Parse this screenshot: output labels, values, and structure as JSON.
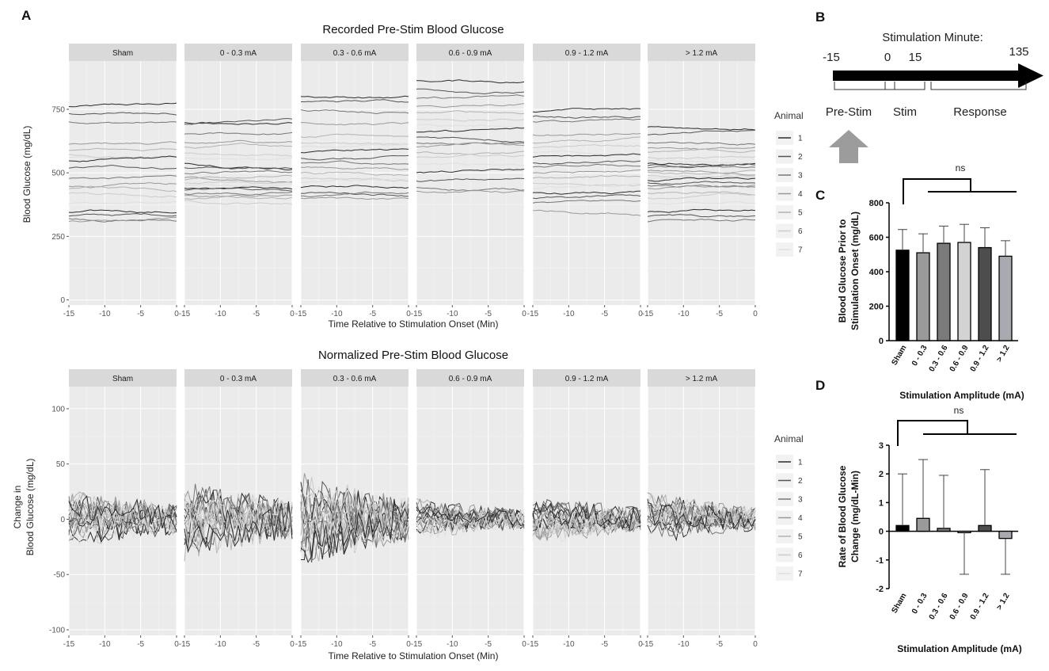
{
  "panel_labels": {
    "a": "A",
    "b": "B",
    "c": "C",
    "d": "D"
  },
  "facets": [
    "Sham",
    "0 - 0.3 mA",
    "0.3 - 0.6 mA",
    "0.6 - 0.9 mA",
    "0.9 - 1.2 mA",
    "> 1.2 mA"
  ],
  "legend": {
    "title": "Animal",
    "items": [
      "1",
      "2",
      "3",
      "4",
      "5",
      "6",
      "7"
    ],
    "colors": [
      "#2b2b2b",
      "#555555",
      "#777777",
      "#999999",
      "#b3b3b3",
      "#cccccc",
      "#e0e0e0"
    ]
  },
  "timeline": {
    "title": "Stimulation Minute:",
    "ticks": [
      "-15",
      "0",
      "15",
      "135"
    ],
    "phases": [
      "Pre-Stim",
      "Stim",
      "Response"
    ]
  },
  "chart_data": [
    {
      "type": "line",
      "title": "Recorded Pre-Stim Blood Glucose",
      "xlabel": "Time Relative to Stimulation Onset (Min)",
      "ylabel": "Blood Glucose (mg/dL)",
      "xlim": [
        -15,
        0
      ],
      "ylim": [
        -20,
        940
      ],
      "xticks": [
        "-15",
        "-10",
        "-5",
        "0"
      ],
      "yticks": [
        "0",
        "250",
        "500",
        "750"
      ],
      "yticks_values": [
        0,
        250,
        500,
        750
      ],
      "facet_baselines": [
        [
          760,
          735,
          700,
          610,
          590,
          570,
          560,
          550,
          520,
          480,
          450,
          440,
          420,
          380,
          345,
          330,
          320,
          310
        ],
        [
          700,
          690,
          650,
          620,
          600,
          580,
          560,
          540,
          520,
          500,
          480,
          470,
          460,
          450,
          440,
          430,
          420,
          410,
          400,
          390
        ],
        [
          800,
          780,
          750,
          700,
          640,
          620,
          600,
          580,
          560,
          540,
          520,
          500,
          480,
          460,
          440,
          420,
          410,
          400
        ],
        [
          860,
          830,
          790,
          760,
          740,
          710,
          690,
          660,
          640,
          620,
          600,
          580,
          560,
          540,
          500,
          470,
          440,
          430
        ],
        [
          740,
          720,
          700,
          650,
          620,
          600,
          580,
          560,
          540,
          520,
          500,
          480,
          460,
          440,
          420,
          400,
          380,
          350
        ],
        [
          680,
          650,
          620,
          600,
          580,
          560,
          550,
          540,
          530,
          520,
          510,
          500,
          490,
          480,
          470,
          460,
          450,
          440,
          420,
          400,
          380,
          350,
          330,
          310
        ]
      ]
    },
    {
      "type": "line",
      "title": "Normalized Pre-Stim Blood Glucose",
      "xlabel": "Time Relative to Stimulation Onset (Min)",
      "ylabel": "Change in Blood Glucose (mg/dL)",
      "ylabel_lines": [
        "Change in",
        "Blood Glucose (mg/dL)"
      ],
      "xlim": [
        -15,
        0
      ],
      "ylim": [
        -105,
        120
      ],
      "xticks": [
        "-15",
        "-10",
        "-5",
        "0"
      ],
      "yticks": [
        "-100",
        "-50",
        "0",
        "50",
        "100"
      ],
      "yticks_values": [
        -100,
        -50,
        0,
        50,
        100
      ],
      "facet_spread": [
        30,
        40,
        45,
        20,
        25,
        25
      ]
    },
    {
      "type": "bar",
      "title": "",
      "ylabel": "Blood Glucose Prior to Stimulation Onset (mg/dL)",
      "ylabel_lines": [
        "Blood Glucose Prior to",
        "Stimulation Onset (mg/dL)"
      ],
      "xlabel": "Stimulation Amplitude (mA)",
      "categories": [
        "Sham",
        "0 - 0.3",
        "0.3 - 0.6",
        "0.6 - 0.9",
        "0.9 - 1.2",
        "> 1.2"
      ],
      "values": [
        525,
        510,
        565,
        570,
        540,
        490
      ],
      "error_upper": [
        645,
        620,
        665,
        675,
        655,
        580
      ],
      "colors": [
        "#000000",
        "#9a9a9a",
        "#7a7a7a",
        "#d3d3d3",
        "#4d4d4d",
        "#a9a9b1"
      ],
      "ylim": [
        0,
        800
      ],
      "yticks": [
        "0",
        "200",
        "400",
        "600",
        "800"
      ],
      "yticks_values": [
        0,
        200,
        400,
        600,
        800
      ],
      "significance": "ns"
    },
    {
      "type": "bar",
      "title": "",
      "ylabel": "Rate of Blood Glucose Change (mg/dL-Min)",
      "ylabel_lines": [
        "Rate of Blood Glucose",
        "Change (mg/dL-Min)"
      ],
      "xlabel": "Stimulation Amplitude (mA)",
      "categories": [
        "Sham",
        "0 - 0.3",
        "0.3 - 0.6",
        "0.6 - 0.9",
        "0.9 - 1.2",
        "> 1.2"
      ],
      "values": [
        0.2,
        0.45,
        0.1,
        -0.05,
        0.2,
        -0.25
      ],
      "error_bound": [
        2.0,
        2.5,
        1.95,
        -1.5,
        2.15,
        -1.5
      ],
      "colors": [
        "#000000",
        "#9a9a9a",
        "#7a7a7a",
        "#d3d3d3",
        "#4d4d4d",
        "#a9a9b1"
      ],
      "ylim": [
        -2,
        3
      ],
      "yticks": [
        "-2",
        "-1",
        "0",
        "1",
        "2",
        "3"
      ],
      "yticks_values": [
        -2,
        -1,
        0,
        1,
        2,
        3
      ],
      "significance": "ns"
    }
  ]
}
